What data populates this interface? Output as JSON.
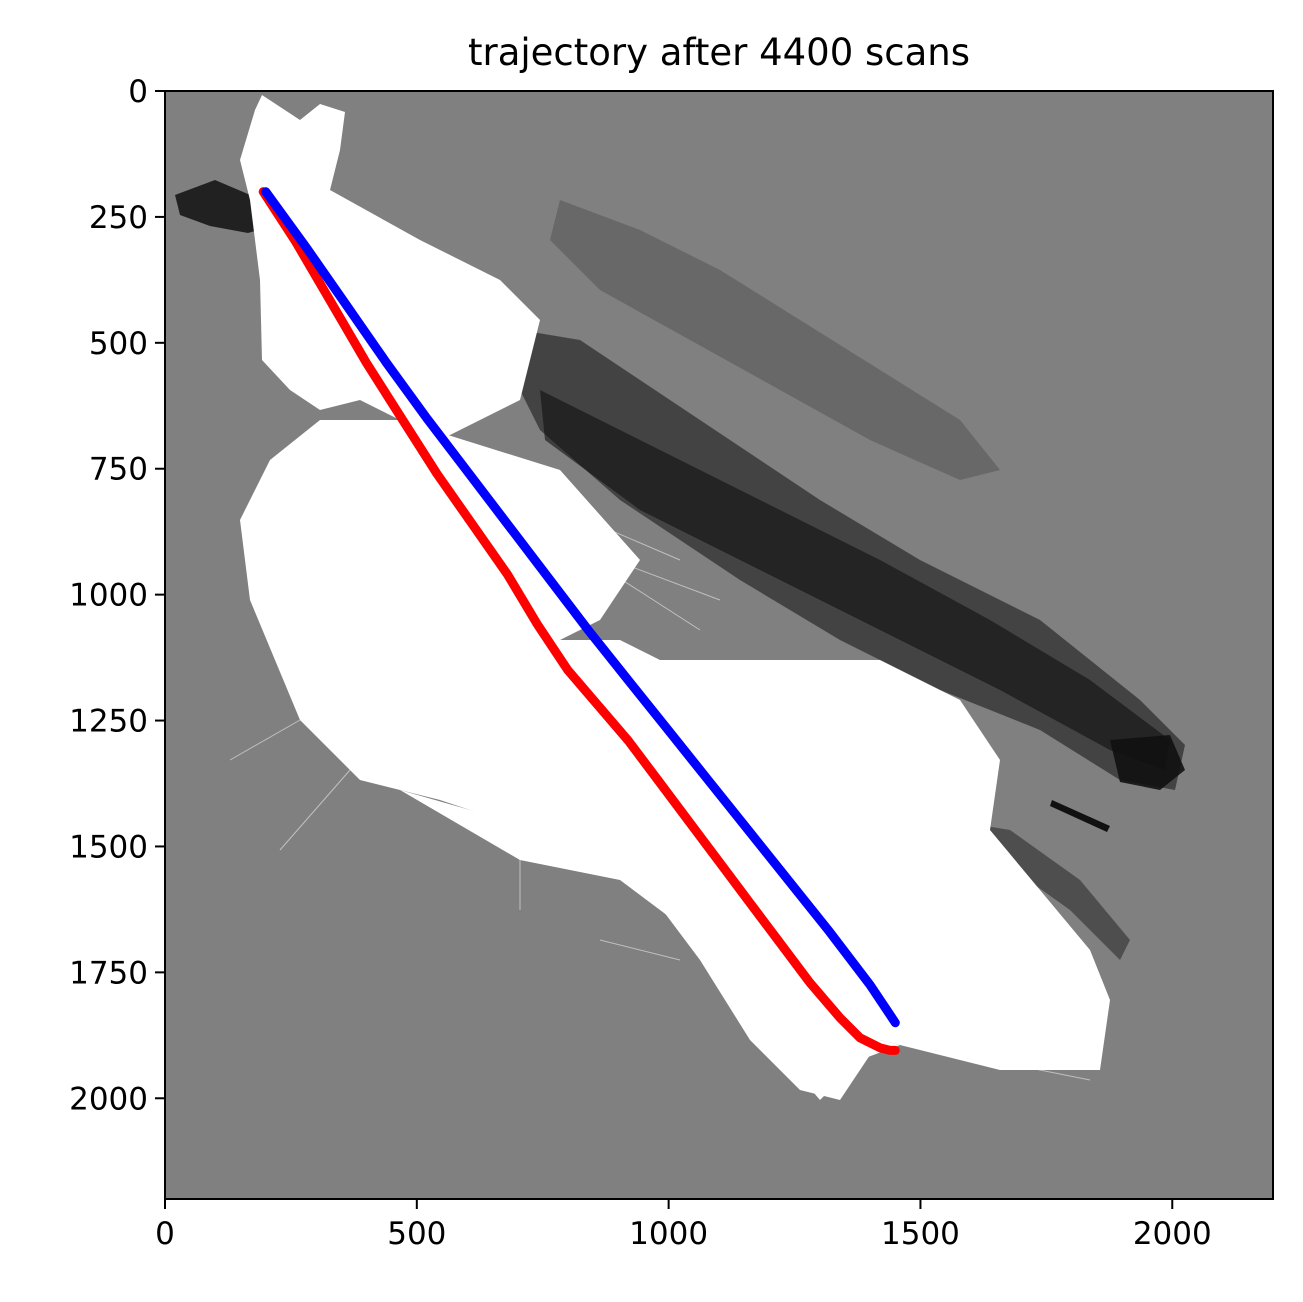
{
  "chart_data": {
    "type": "scatter",
    "title": "trajectory after 4400 scans",
    "xlabel": "",
    "ylabel": "",
    "xlim": [
      0,
      2200
    ],
    "ylim": [
      2200,
      0
    ],
    "y_inverted": true,
    "x_ticks": [
      0,
      500,
      1000,
      1500,
      2000
    ],
    "y_ticks": [
      0,
      250,
      500,
      750,
      1000,
      1250,
      1500,
      1750,
      2000
    ],
    "background": "occupancy grid map image (gray = unknown, white = free, black = occupied)",
    "series": [
      {
        "color": "#ff0000",
        "x": [
          195,
          260,
          330,
          400,
          470,
          540,
          610,
          680,
          740,
          800,
          860,
          920,
          980,
          1040,
          1100,
          1160,
          1220,
          1280,
          1340,
          1380,
          1420,
          1440,
          1450
        ],
        "y": [
          200,
          300,
          420,
          540,
          650,
          760,
          860,
          960,
          1060,
          1150,
          1220,
          1290,
          1370,
          1450,
          1530,
          1610,
          1690,
          1770,
          1840,
          1880,
          1900,
          1905,
          1905
        ]
      },
      {
        "color": "#0000ff",
        "x": [
          200,
          280,
          360,
          440,
          520,
          600,
          680,
          760,
          840,
          920,
          1000,
          1080,
          1160,
          1240,
          1320,
          1400,
          1450
        ],
        "y": [
          200,
          310,
          425,
          540,
          650,
          755,
          860,
          965,
          1070,
          1170,
          1270,
          1370,
          1470,
          1570,
          1670,
          1775,
          1850
        ]
      }
    ]
  }
}
